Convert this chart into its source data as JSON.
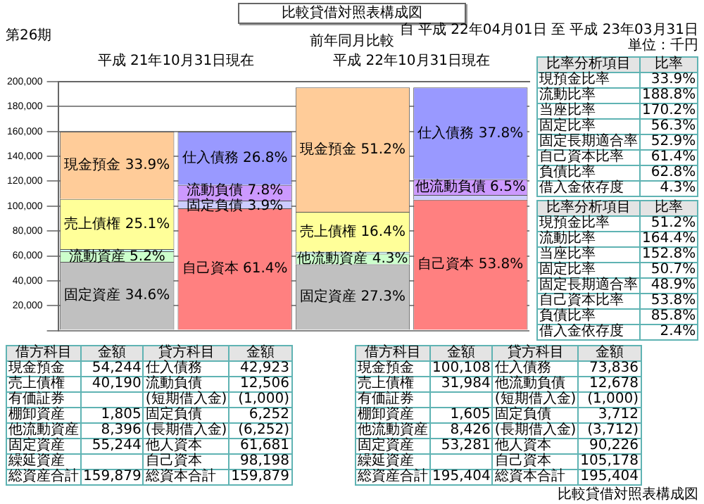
{
  "chart_data": [
    {
      "type": "bar",
      "title": "比較貸借対照表構成図",
      "subtitle": "前年同月比較",
      "annotations": [
        "第26期",
        "自 平成 22年04月01日 至 平成 23年03月31日",
        "単位：千円",
        "比較貸借対照表構成図",
        "平成 21年10月31日現在",
        "平成 22年10月31日現在"
      ],
      "categories": [
        null,
        null,
        null,
        null
      ],
      "tick_labels": "y",
      "stacked": true,
      "grid": "y",
      "ylim": [
        0,
        200000
      ],
      "yticks": [
        {
          "value": 0,
          "label": null
        },
        {
          "value": 20000,
          "label": "20,000"
        },
        {
          "value": 40000,
          "label": "40,000"
        },
        {
          "value": 60000,
          "label": "60,000"
        },
        {
          "value": 80000,
          "label": "80,000"
        },
        {
          "value": 100000,
          "label": "100,000"
        },
        {
          "value": 120000,
          "label": "120,000"
        },
        {
          "value": 140000,
          "label": "140,000"
        },
        {
          "value": 160000,
          "label": "160,000"
        },
        {
          "value": 180000,
          "label": "180,000"
        },
        {
          "value": 200000,
          "label": "200,000"
        }
      ],
      "series": [
        {
          "color": "#c0c0c0",
          "values": [
            55244,
            null,
            53281,
            null
          ],
          "value_labels": [
            "固定資産 34.6%",
            null,
            "固定資産 27.3%",
            null
          ]
        },
        {
          "color": "#ccffcc",
          "values": [
            8396,
            null,
            8426,
            null
          ],
          "value_labels": [
            "流動資産 5.2%",
            null,
            "他流動資産 4.3%",
            null
          ]
        },
        {
          "color": "#ccffff",
          "values": [
            1805,
            null,
            1605,
            null
          ]
        },
        {
          "color": "#ffff99",
          "values": [
            40190,
            null,
            31984,
            null
          ],
          "value_labels": [
            "売上債権 25.1%",
            null,
            "売上債権 16.4%",
            null
          ]
        },
        {
          "color": "#ffcc99",
          "values": [
            54244,
            null,
            100108,
            null
          ],
          "value_labels": [
            "現金預金 33.9%",
            null,
            "現金預金 51.2%",
            null
          ]
        },
        {
          "color": "#ff8080",
          "values": [
            null,
            98198,
            null,
            105178
          ],
          "value_labels": [
            null,
            "自己資本 61.4%",
            null,
            "自己資本 53.8%"
          ]
        },
        {
          "color": "#ccccff",
          "values": [
            null,
            6252,
            null,
            3712
          ],
          "value_labels": [
            null,
            "固定負債 3.9%",
            null,
            null
          ]
        },
        {
          "color": "#cc99ff",
          "values": [
            null,
            12506,
            null,
            12678
          ],
          "value_labels": [
            null,
            "流動負債 7.8%",
            null,
            "他流動負債 6.5%"
          ]
        },
        {
          "color": "#9999ff",
          "values": [
            null,
            42923,
            null,
            73836
          ],
          "value_labels": [
            null,
            "仕入債務 26.8%",
            null,
            "仕入債務 37.8%"
          ]
        }
      ]
    },
    {
      "type": "other",
      "categories": [
        "借方科目",
        "金額",
        "貸方科目",
        "金額"
      ],
      "annotations": [
        "現金預金",
        "54,244",
        "仕入債務",
        "42,923",
        "売上債権",
        "40,190",
        "流動負債",
        "12,506",
        "有価証券",
        null,
        "(短期借入金)",
        "(1,000)",
        "棚卸資産",
        "1,805",
        "固定負債",
        "6,252",
        "他流動資産",
        "8,396",
        "(長期借入金)",
        "(6,252)",
        "固定資産",
        "55,244",
        "他人資本",
        "61,681",
        "繰延資産",
        null,
        "自己資本",
        "98,198",
        "総資産合計",
        "159,879",
        "総資本合計",
        "159,879"
      ]
    },
    {
      "type": "other",
      "categories": [
        "比率分析項目",
        "比率"
      ],
      "annotations": [
        "現預金比率",
        "33.9%",
        "流動比率",
        "188.8%",
        "当座比率",
        "170.2%",
        "固定比率",
        "56.3%",
        "固定長期適合率",
        "52.9%",
        "自己資本比率",
        "61.4%",
        "負債比率",
        "62.8%",
        "借入金依存度",
        "4.3%"
      ]
    },
    {
      "type": "other",
      "categories": [
        "借方科目",
        "金額",
        "貸方科目",
        "金額"
      ],
      "annotations": [
        "現金預金",
        "100,108",
        "仕入債務",
        "73,836",
        "売上債権",
        "31,984",
        "他流動負債",
        "12,678",
        "有価証券",
        null,
        "(短期借入金)",
        "(1,000)",
        "棚卸資産",
        "1,605",
        "固定負債",
        "3,712",
        "他流動資産",
        "8,426",
        "(長期借入金)",
        "(3,712)",
        "固定資産",
        "53,281",
        "他人資本",
        "90,226",
        "繰延資産",
        null,
        "自己資本",
        "105,178",
        "総資産合計",
        "195,404",
        "総資本合計",
        "195,404"
      ]
    },
    {
      "type": "other",
      "categories": [
        "比率分析項目",
        "比率"
      ],
      "annotations": [
        "現預金比率",
        "51.2%",
        "流動比率",
        "164.4%",
        "当座比率",
        "152.8%",
        "固定比率",
        "50.7%",
        "固定長期適合率",
        "48.9%",
        "自己資本比率",
        "53.8%",
        "負債比率",
        "85.8%",
        "借入金依存度",
        "2.4%"
      ]
    }
  ]
}
